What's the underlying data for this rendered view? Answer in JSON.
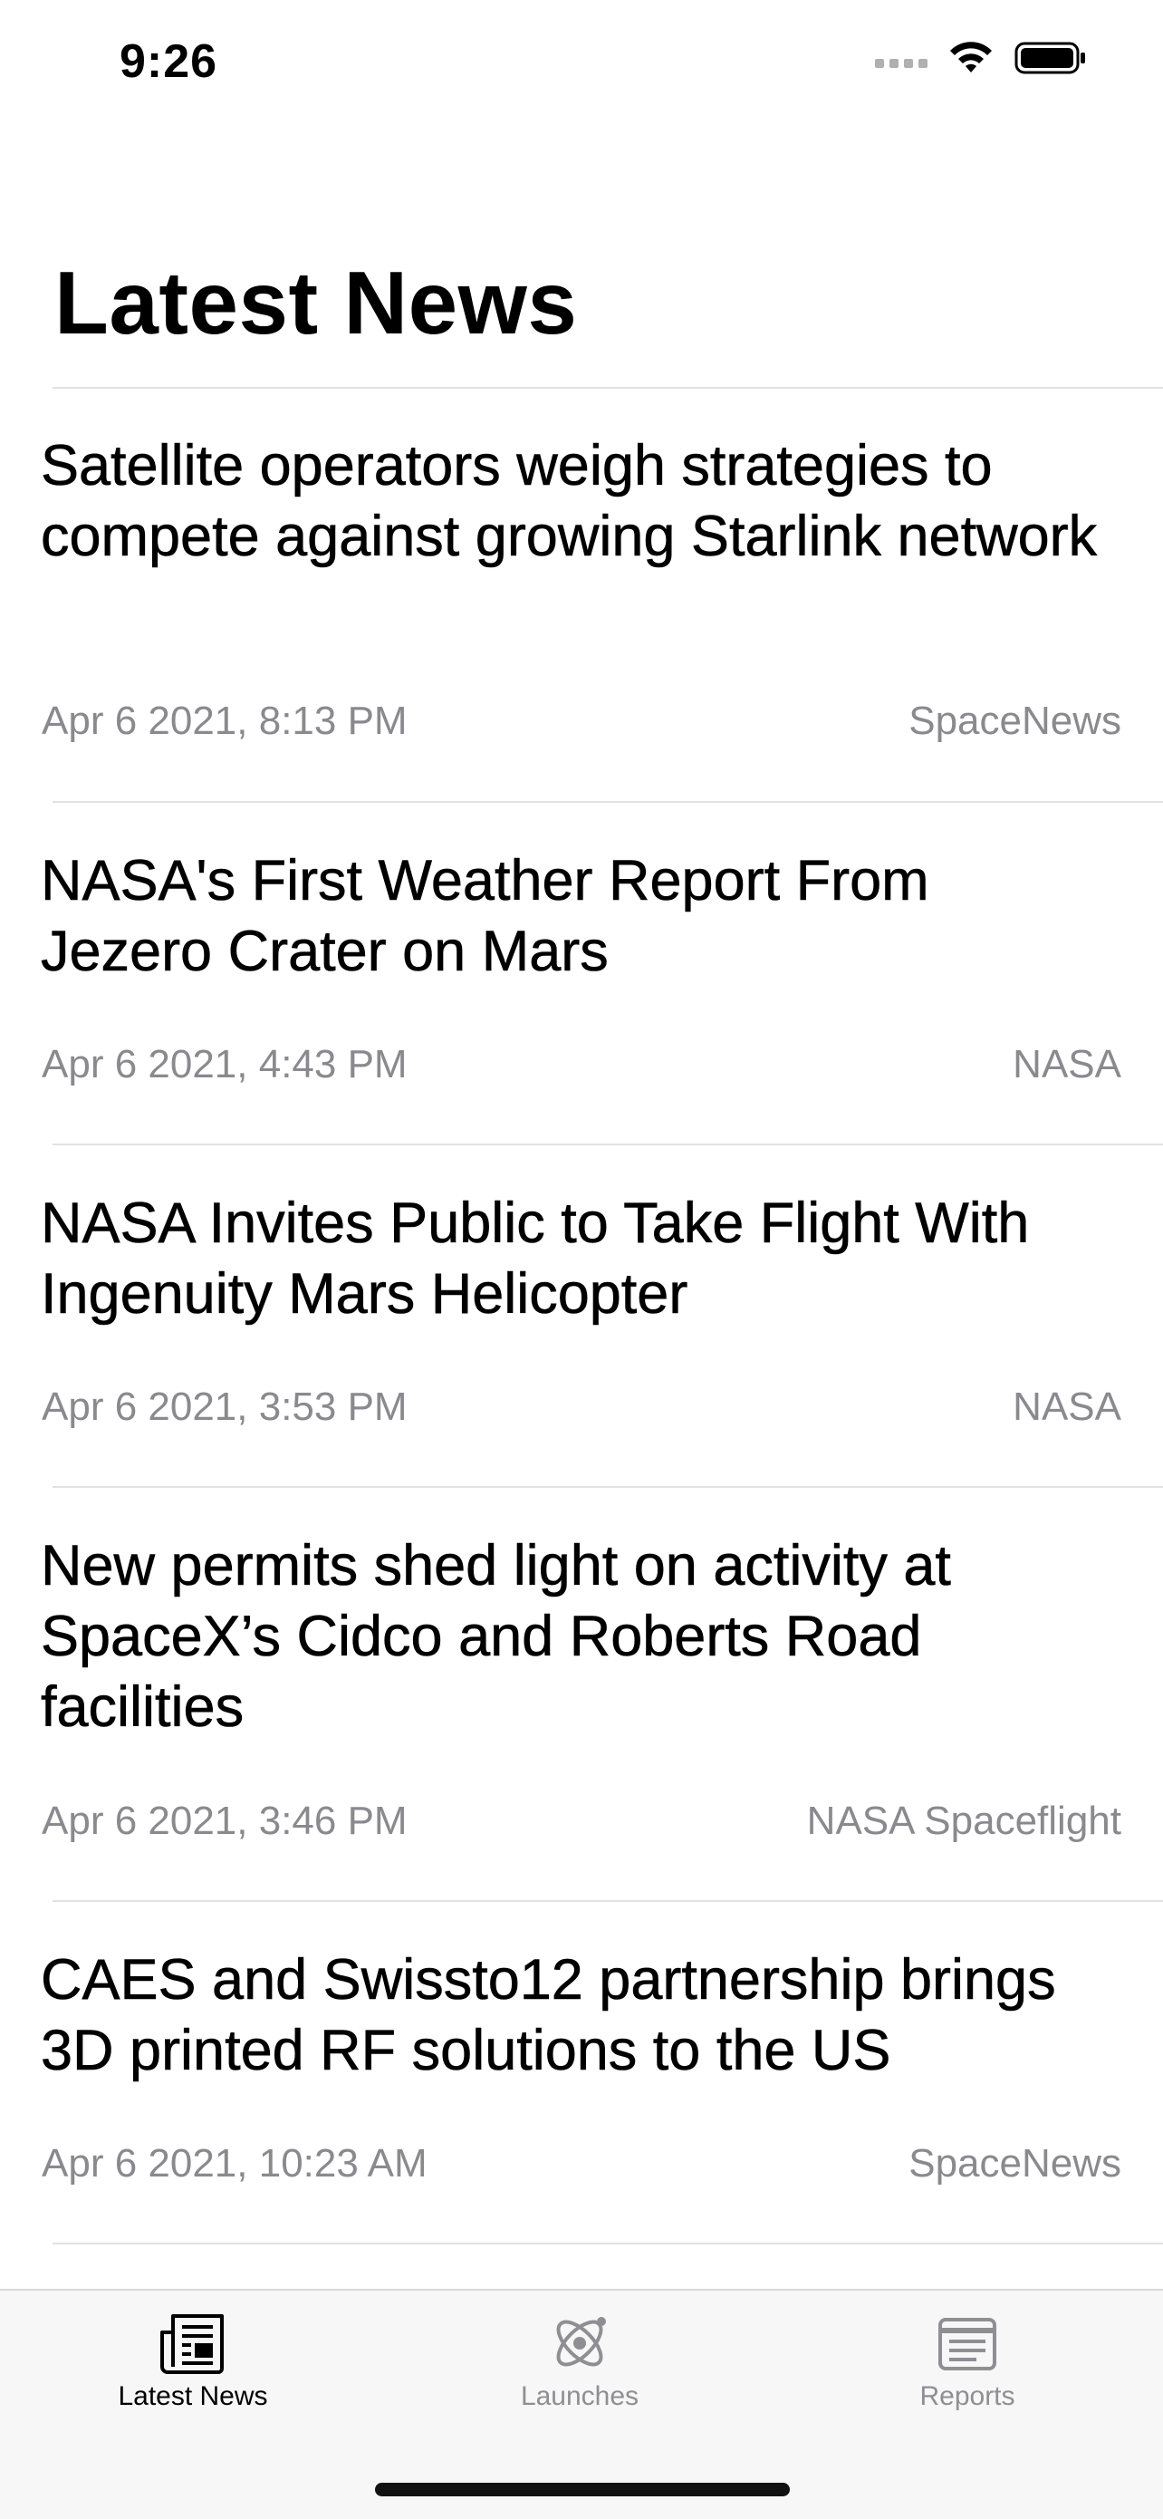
{
  "status_bar": {
    "time": "9:26"
  },
  "page": {
    "title": "Latest News"
  },
  "news": [
    {
      "title": "Satellite operators weigh strategies to compete against growing Starlink network",
      "date": "Apr 6 2021, 8:13 PM",
      "source": "SpaceNews"
    },
    {
      "title": "NASA's First Weather Report From Jezero Crater on Mars",
      "date": "Apr 6 2021, 4:43 PM",
      "source": "NASA"
    },
    {
      "title": "NASA Invites Public to Take Flight With Ingenuity Mars Helicopter",
      "date": "Apr 6 2021, 3:53 PM",
      "source": "NASA"
    },
    {
      "title": "New permits shed light on activity at SpaceX’s Cidco and Roberts Road facilities",
      "date": "Apr 6 2021, 3:46 PM",
      "source": "NASA Spaceflight"
    },
    {
      "title": "CAES and Swissto12 partnership brings 3D printed RF solutions to the US",
      "date": "Apr 6 2021, 10:23 AM",
      "source": "SpaceNews"
    }
  ],
  "tab_bar": {
    "tabs": [
      {
        "label": "Latest News",
        "icon": "newspaper-icon",
        "active": true
      },
      {
        "label": "Launches",
        "icon": "satellite-icon",
        "active": false
      },
      {
        "label": "Reports",
        "icon": "reports-icon",
        "active": false
      }
    ]
  },
  "colors": {
    "secondary_text": "#8a8a8e",
    "divider": "#e2e2e4",
    "tab_inactive": "#8f8f93"
  }
}
